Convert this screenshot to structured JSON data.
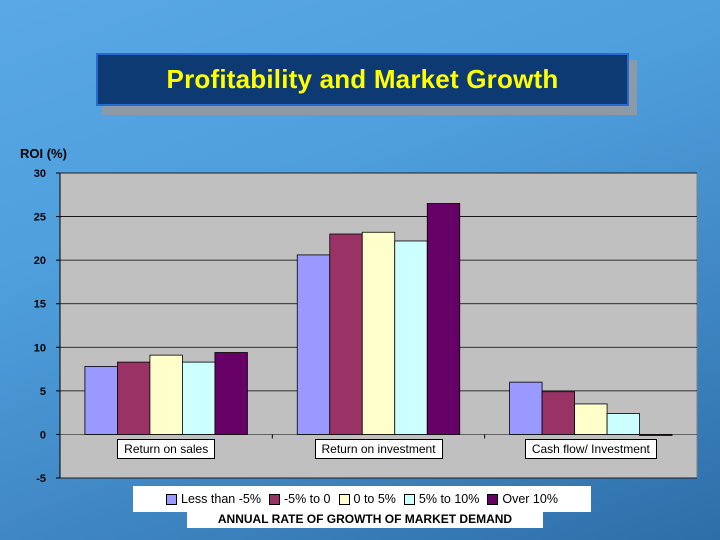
{
  "slide": {
    "title": "Profitability and Market Growth"
  },
  "chart_data": {
    "type": "bar",
    "title": "Profitability and Market Growth",
    "ylabel": "ROI (%)",
    "xlabel": "ANNUAL RATE OF GROWTH OF MARKET DEMAND",
    "ylim": [
      -5,
      30
    ],
    "yticks": [
      "30",
      "25",
      "20",
      "15",
      "10",
      "5",
      "0",
      "-5"
    ],
    "grid": true,
    "legend_position": "bottom",
    "categories": [
      "Return on sales",
      "Return on investment",
      "Cash flow/ Investment"
    ],
    "series": [
      {
        "name": "Less than -5%",
        "color": "#9999ff",
        "values": [
          7.8,
          20.6,
          6.0
        ]
      },
      {
        "name": "-5% to 0",
        "color": "#993366",
        "values": [
          8.3,
          23.0,
          4.9
        ]
      },
      {
        "name": "0 to 5%",
        "color": "#ffffcc",
        "values": [
          9.1,
          23.2,
          3.5
        ]
      },
      {
        "name": "5% to 10%",
        "color": "#ccffff",
        "values": [
          8.3,
          22.2,
          2.4
        ]
      },
      {
        "name": "Over 10%",
        "color": "#660066",
        "values": [
          9.4,
          26.5,
          -0.1
        ]
      }
    ]
  }
}
